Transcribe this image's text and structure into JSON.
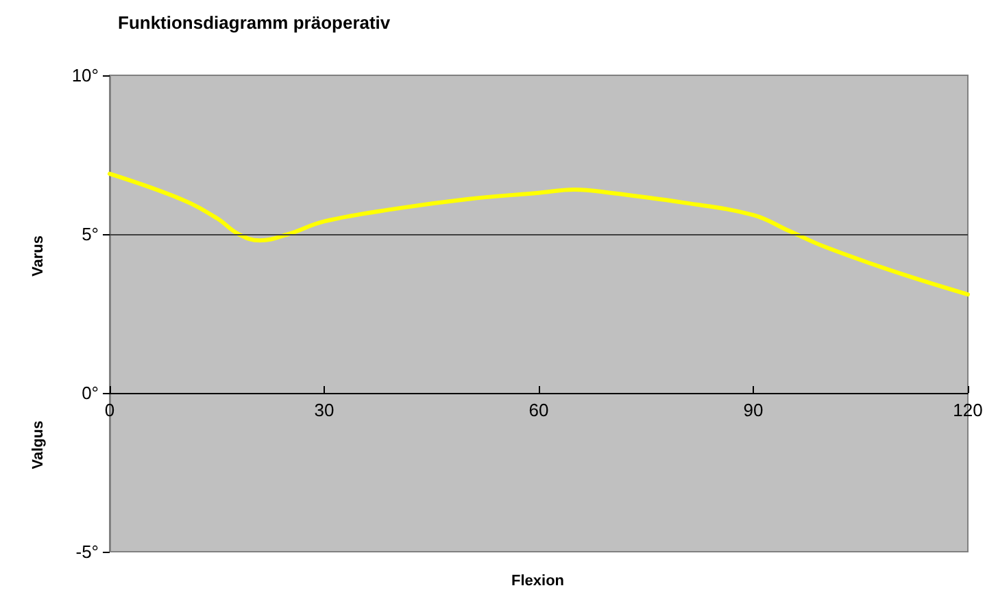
{
  "chart_data": {
    "type": "line",
    "title": "Funktionsdiagramm präoperativ",
    "xlabel": "Flexion",
    "ylabel": "Varus",
    "annotations": [
      "Valgus"
    ],
    "x": [
      0,
      10,
      15,
      18,
      21,
      25,
      30,
      40,
      50,
      60,
      65,
      70,
      80,
      90,
      95,
      100,
      110,
      120
    ],
    "series": [
      {
        "color": "#ffff00",
        "values": [
          6.9,
          6.1,
          5.5,
          5.0,
          4.8,
          5.0,
          5.4,
          5.8,
          6.1,
          6.3,
          6.4,
          6.3,
          6.0,
          5.6,
          5.1,
          4.6,
          3.8,
          3.1
        ]
      }
    ],
    "xlim": [
      0,
      120
    ],
    "xticks": [
      0,
      30,
      60,
      90,
      120
    ],
    "ylim": [
      -5,
      10
    ],
    "yticks": [
      {
        "value": -5,
        "label": "-5°"
      },
      {
        "value": 0,
        "label": "0°"
      },
      {
        "value": 5,
        "label": "5°"
      },
      {
        "value": 10,
        "label": "10°"
      }
    ],
    "ref_lines": [
      {
        "axis": "y",
        "value": 5,
        "color": "#404040"
      }
    ],
    "marker": "none",
    "line_style": "solid"
  }
}
